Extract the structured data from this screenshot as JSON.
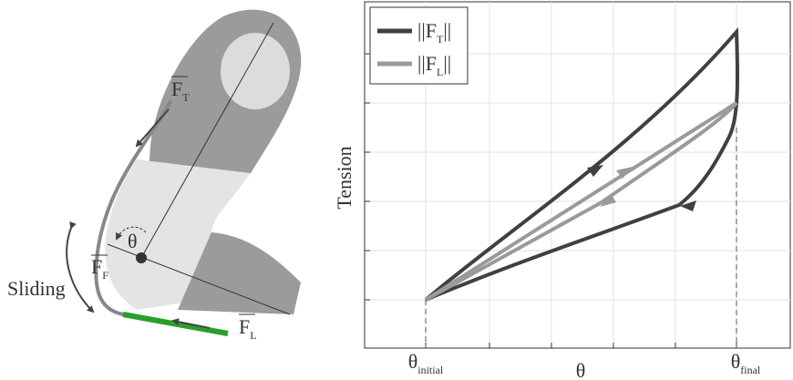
{
  "diagram": {
    "labels": {
      "tendon_force": {
        "base": "F",
        "sub": "T"
      },
      "angle": "θ",
      "friction_force": {
        "base": "F",
        "sub": "F"
      },
      "sliding": "Sliding",
      "load_force": {
        "base": "F",
        "sub": "L"
      }
    }
  },
  "plot": {
    "y_label": "Tension",
    "x_label": "θ",
    "x_ticks": [
      {
        "base": "θ",
        "sub": "initial"
      },
      {
        "base": "θ",
        "sub": "final"
      }
    ],
    "legend": [
      {
        "prefix": "||F",
        "sub": "T",
        "suffix": "||",
        "color": "#404040"
      },
      {
        "prefix": "||F",
        "sub": "L",
        "suffix": "||",
        "color": "#9a9a9a"
      }
    ]
  }
}
